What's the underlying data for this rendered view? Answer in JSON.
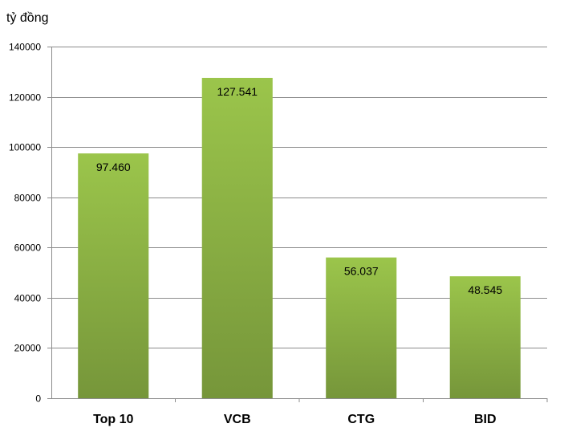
{
  "chart_data": {
    "type": "bar",
    "title": "",
    "ylabel": "tỷ đồng",
    "xlabel": "",
    "categories": [
      "Top 10",
      "VCB",
      "CTG",
      "BID"
    ],
    "values": [
      97460,
      127541,
      56037,
      48545
    ],
    "data_labels": [
      "97.460",
      "127.541",
      "56.037",
      "48.545"
    ],
    "ylim": [
      0,
      140000
    ],
    "yticks": [
      0,
      20000,
      40000,
      60000,
      80000,
      100000,
      120000,
      140000
    ],
    "ytick_labels": [
      "0",
      "20000",
      "40000",
      "60000",
      "80000",
      "100000",
      "120000",
      "140000"
    ],
    "grid": true,
    "legend": "none",
    "colors": {
      "bar_top": "#9BC54B",
      "bar_bottom": "#76963A",
      "grid": "#8C8C8C",
      "axis": "#8C8C8C"
    }
  }
}
